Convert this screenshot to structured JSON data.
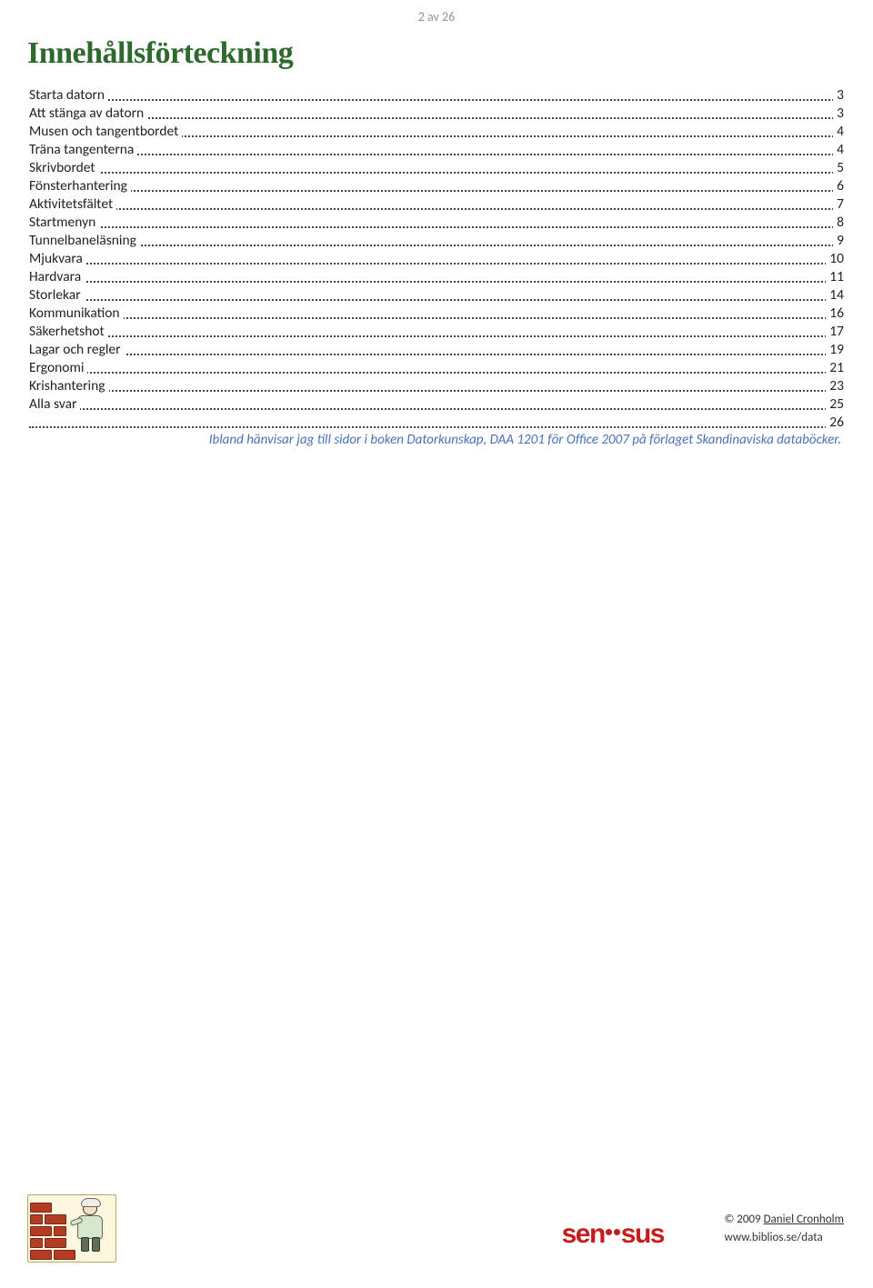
{
  "page_number": "2 av 26",
  "heading": "Innehållsförteckning",
  "toc": [
    {
      "label": "Starta datorn",
      "page": "3"
    },
    {
      "label": "Att stänga av datorn",
      "page": "3"
    },
    {
      "label": "Musen och tangentbordet",
      "page": "4"
    },
    {
      "label": "Träna tangenterna",
      "page": "4"
    },
    {
      "label": "Skrivbordet",
      "page": "5"
    },
    {
      "label": "Fönsterhantering",
      "page": "6"
    },
    {
      "label": "Aktivitetsfältet",
      "page": "7"
    },
    {
      "label": "Startmenyn",
      "page": "8"
    },
    {
      "label": "Tunnelbaneläsning",
      "page": "9"
    },
    {
      "label": "Mjukvara",
      "page": "10"
    },
    {
      "label": "Hardvara",
      "page": "11"
    },
    {
      "label": "Storlekar",
      "page": "14"
    },
    {
      "label": "Kommunikation",
      "page": "16"
    },
    {
      "label": "Säkerhetshot",
      "page": "17"
    },
    {
      "label": "Lagar och regler",
      "page": "19"
    },
    {
      "label": "Ergonomi",
      "page": "21"
    },
    {
      "label": "Krishantering",
      "page": "23"
    },
    {
      "label": "Alla svar",
      "page": "25"
    },
    {
      "label": "",
      "page": "26"
    }
  ],
  "note": "Ibland hänvisar jag till sidor i boken Datorkunskap, DAA 1201 för Office 2007 på förlaget Skandinaviska databöcker.",
  "logo_text_left": "sen",
  "logo_text_right": "sus",
  "copyright_line": "© 2009 ",
  "copyright_name": "Daniel Cronholm",
  "copyright_url": "www.biblios.se/data",
  "colors": {
    "heading": "#2e6a2e",
    "page_number": "#8a9b8a",
    "note": "#4a72b8",
    "logo": "#c61c1c",
    "brick": "#b43c25",
    "brick_border": "#7a2815",
    "illust_bg": "#fdf7e0"
  },
  "font_sizes": {
    "heading": 34,
    "body": 15.5,
    "page_number": 14,
    "note": 15,
    "logo": 30,
    "copyright": 13
  }
}
